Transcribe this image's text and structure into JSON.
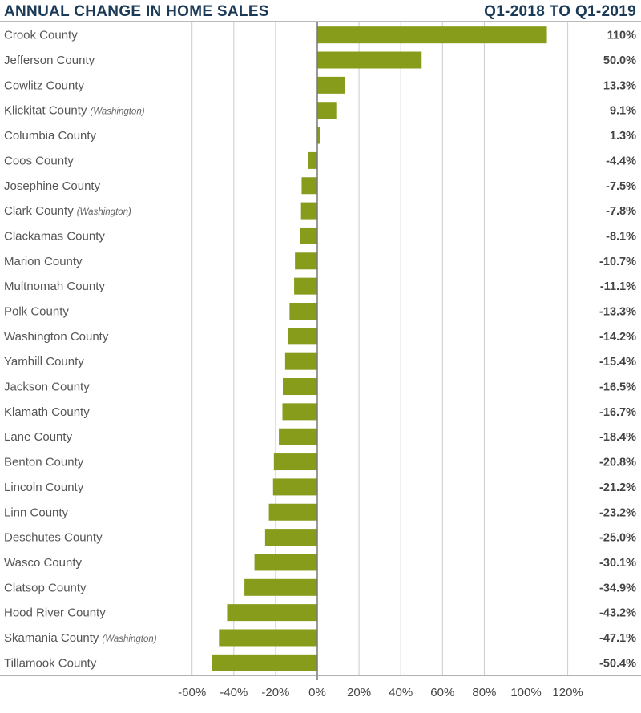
{
  "chart_data": {
    "type": "bar",
    "orientation": "horizontal",
    "title": "ANNUAL CHANGE IN HOME SALES",
    "subtitle": "Q1-2018 TO Q1-2019",
    "xlim": [
      -60,
      120
    ],
    "xticks": [
      "-60%",
      "-40%",
      "-20%",
      "0%",
      "20%",
      "40%",
      "60%",
      "80%",
      "100%",
      "120%"
    ],
    "xtick_values": [
      -60,
      -40,
      -20,
      0,
      20,
      40,
      60,
      80,
      100,
      120
    ],
    "grid": true,
    "bar_color": "#879c1a",
    "categories": [
      {
        "name": "Crook County",
        "note": "",
        "value": 110,
        "label": "110%"
      },
      {
        "name": "Jefferson County",
        "note": "",
        "value": 50.0,
        "label": "50.0%"
      },
      {
        "name": "Cowlitz County",
        "note": "",
        "value": 13.3,
        "label": "13.3%"
      },
      {
        "name": "Klickitat County",
        "note": "(Washington)",
        "value": 9.1,
        "label": "9.1%"
      },
      {
        "name": "Columbia County",
        "note": "",
        "value": 1.3,
        "label": "1.3%"
      },
      {
        "name": "Coos County",
        "note": "",
        "value": -4.4,
        "label": "-4.4%"
      },
      {
        "name": "Josephine County",
        "note": "",
        "value": -7.5,
        "label": "-7.5%"
      },
      {
        "name": "Clark County",
        "note": "(Washington)",
        "value": -7.8,
        "label": "-7.8%"
      },
      {
        "name": "Clackamas County",
        "note": "",
        "value": -8.1,
        "label": "-8.1%"
      },
      {
        "name": "Marion County",
        "note": "",
        "value": -10.7,
        "label": "-10.7%"
      },
      {
        "name": "Multnomah County",
        "note": "",
        "value": -11.1,
        "label": "-11.1%"
      },
      {
        "name": "Polk County",
        "note": "",
        "value": -13.3,
        "label": "-13.3%"
      },
      {
        "name": "Washington County",
        "note": "",
        "value": -14.2,
        "label": "-14.2%"
      },
      {
        "name": "Yamhill County",
        "note": "",
        "value": -15.4,
        "label": "-15.4%"
      },
      {
        "name": "Jackson County",
        "note": "",
        "value": -16.5,
        "label": "-16.5%"
      },
      {
        "name": "Klamath County",
        "note": "",
        "value": -16.7,
        "label": "-16.7%"
      },
      {
        "name": "Lane County",
        "note": "",
        "value": -18.4,
        "label": "-18.4%"
      },
      {
        "name": "Benton County",
        "note": "",
        "value": -20.8,
        "label": "-20.8%"
      },
      {
        "name": "Lincoln County",
        "note": "",
        "value": -21.2,
        "label": "-21.2%"
      },
      {
        "name": "Linn County",
        "note": "",
        "value": -23.2,
        "label": "-23.2%"
      },
      {
        "name": "Deschutes County",
        "note": "",
        "value": -25.0,
        "label": "-25.0%"
      },
      {
        "name": "Wasco County",
        "note": "",
        "value": -30.1,
        "label": "-30.1%"
      },
      {
        "name": "Clatsop County",
        "note": "",
        "value": -34.9,
        "label": "-34.9%"
      },
      {
        "name": "Hood River County",
        "note": "",
        "value": -43.2,
        "label": "-43.2%"
      },
      {
        "name": "Skamania County",
        "note": "(Washington)",
        "value": -47.1,
        "label": "-47.1%"
      },
      {
        "name": "Tillamook County",
        "note": "",
        "value": -50.4,
        "label": "-50.4%"
      }
    ]
  }
}
